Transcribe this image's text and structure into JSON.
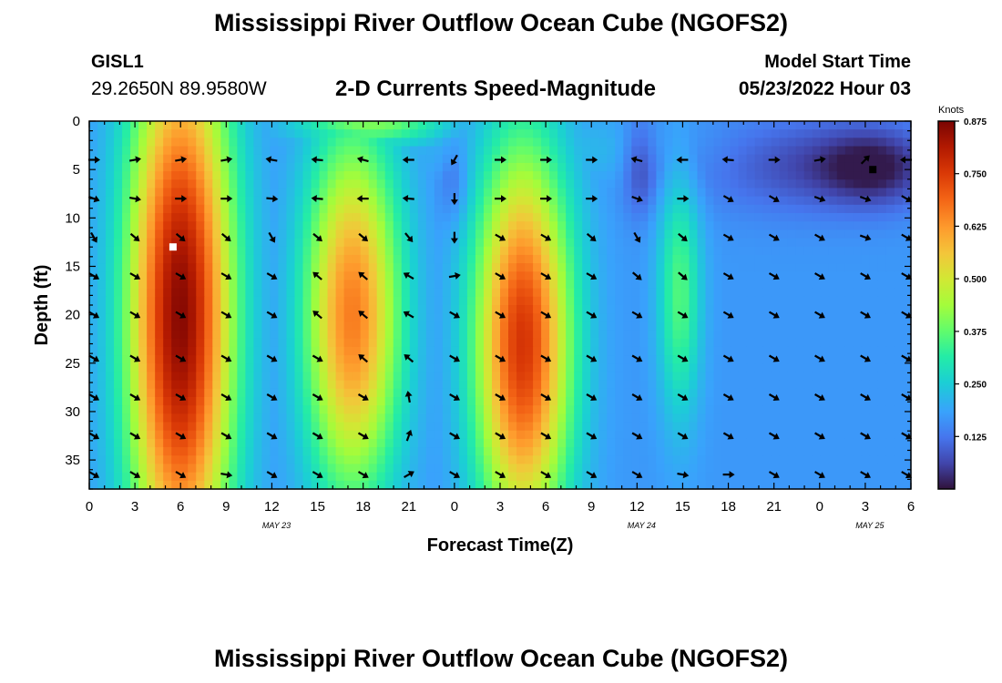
{
  "header": {
    "title": "Mississippi River Outflow Ocean Cube (NGOFS2)",
    "station": "GISL1",
    "coords": "29.2650N  89.9580W",
    "subtitle": "2-D Currents Speed-Magnitude",
    "model_start_label": "Model Start Time",
    "model_start_value": "05/23/2022 Hour 03"
  },
  "footer": {
    "title": "Mississippi River Outflow Ocean Cube (NGOFS2)"
  },
  "chart_data": {
    "type": "heatmap",
    "xlabel": "Forecast Time(Z)",
    "ylabel": "Depth (ft)",
    "xlim": [
      0,
      54
    ],
    "ylim": [
      0,
      38
    ],
    "y_inverted": true,
    "x_tick_values": [
      0,
      3,
      6,
      9,
      12,
      15,
      18,
      21,
      24,
      27,
      30,
      33,
      36,
      39,
      42,
      45,
      48,
      51,
      54
    ],
    "x_tick_labels": [
      "0",
      "3",
      "6",
      "9",
      "12",
      "15",
      "18",
      "21",
      "0",
      "3",
      "6",
      "9",
      "12",
      "15",
      "18",
      "21",
      "0",
      "3",
      "6"
    ],
    "y_tick_values": [
      0,
      5,
      10,
      15,
      20,
      25,
      30,
      35
    ],
    "y_tick_labels": [
      "0",
      "5",
      "10",
      "15",
      "20",
      "25",
      "30",
      "35"
    ],
    "date_labels": [
      {
        "x": 12.3,
        "text": "MAY 23"
      },
      {
        "x": 36.3,
        "text": "MAY 24"
      },
      {
        "x": 51.3,
        "text": "MAY 25"
      }
    ],
    "colorbar": {
      "label": "Knots",
      "min": 0,
      "max": 0.875,
      "tick_values": [
        0.125,
        0.25,
        0.375,
        0.5,
        0.625,
        0.75,
        0.875
      ],
      "tick_labels": [
        "0.125",
        "0.250",
        "0.375",
        "0.500",
        "0.625",
        "0.750",
        "0.875"
      ]
    },
    "speed_features": [
      {
        "t": 6,
        "d": 20,
        "st": 2.4,
        "sd": 20,
        "amp": 0.86
      },
      {
        "t": 6.2,
        "d": 1,
        "st": 1.5,
        "sd": 2.4,
        "amp": 0.5
      },
      {
        "t": 17.3,
        "d": 20,
        "st": 2.2,
        "sd": 13,
        "amp": 0.66
      },
      {
        "t": 15.8,
        "d": 33,
        "st": 1.3,
        "sd": 5,
        "amp": 0.18
      },
      {
        "t": 18.5,
        "d": 0.3,
        "st": 3.5,
        "sd": 1.6,
        "amp": 0.4
      },
      {
        "t": 28.5,
        "d": 23,
        "st": 2.2,
        "sd": 14,
        "amp": 0.76
      },
      {
        "t": 38.8,
        "d": 18,
        "st": 1.0,
        "sd": 9,
        "amp": 0.36
      },
      {
        "t": 38.8,
        "d": 3,
        "st": 0.8,
        "sd": 4,
        "amp": 0.18
      },
      {
        "t": 51,
        "d": 22,
        "st": 2.0,
        "sd": 15,
        "amp": 0.1
      },
      {
        "t": 45.5,
        "d": 22,
        "st": 1.5,
        "sd": 15,
        "amp": 0.06
      },
      {
        "t": 30,
        "d": 3,
        "st": 8,
        "sd": 2.6,
        "amp": 0.22
      },
      {
        "t": 16,
        "d": 4.5,
        "st": 6,
        "sd": 3,
        "amp": 0.12
      }
    ],
    "low_features": [
      {
        "t": 36.2,
        "d": 4.5,
        "st": 0.8,
        "sd": 3.5,
        "amp": 0.1
      },
      {
        "t": 51.7,
        "d": 4.8,
        "st": 2.5,
        "sd": 2.8,
        "amp": 0.12
      },
      {
        "t": 47,
        "d": 4.5,
        "st": 5,
        "sd": 3.5,
        "amp": 0.1
      },
      {
        "t": 24,
        "d": 6.5,
        "st": 0.7,
        "sd": 3,
        "amp": 0.06
      }
    ],
    "vector_times": [
      0,
      3,
      6,
      9,
      12,
      15,
      18,
      21,
      24,
      27,
      30,
      33,
      36,
      39,
      42,
      45,
      48,
      51,
      54
    ],
    "vector_depths": [
      4,
      8,
      12,
      16,
      20,
      24.5,
      28.5,
      32.5,
      36.5
    ],
    "vector_directions": [
      [
        0,
        10,
        10,
        10,
        170,
        175,
        165,
        180,
        240,
        0,
        0,
        0,
        165,
        180,
        175,
        0,
        10,
        45,
        180
      ],
      [
        340,
        350,
        0,
        0,
        355,
        175,
        180,
        175,
        270,
        0,
        0,
        0,
        340,
        0,
        330,
        330,
        340,
        340,
        330
      ],
      [
        300,
        320,
        320,
        320,
        300,
        320,
        320,
        310,
        270,
        330,
        330,
        320,
        300,
        320,
        330,
        330,
        330,
        340,
        330
      ],
      [
        330,
        330,
        330,
        330,
        330,
        140,
        140,
        150,
        10,
        330,
        330,
        330,
        320,
        320,
        330,
        330,
        330,
        330,
        330
      ],
      [
        330,
        330,
        330,
        330,
        330,
        140,
        140,
        150,
        330,
        330,
        330,
        330,
        330,
        330,
        330,
        330,
        330,
        330,
        330
      ],
      [
        330,
        330,
        330,
        330,
        330,
        330,
        140,
        140,
        330,
        330,
        330,
        330,
        330,
        330,
        330,
        330,
        330,
        330,
        330
      ],
      [
        330,
        330,
        330,
        330,
        330,
        330,
        330,
        100,
        330,
        330,
        330,
        330,
        330,
        330,
        330,
        330,
        330,
        330,
        330
      ],
      [
        330,
        330,
        330,
        330,
        330,
        330,
        330,
        70,
        330,
        330,
        330,
        330,
        330,
        330,
        330,
        330,
        330,
        330,
        330
      ],
      [
        330,
        330,
        330,
        350,
        330,
        330,
        330,
        30,
        330,
        330,
        330,
        330,
        330,
        350,
        0,
        330,
        330,
        330,
        330
      ]
    ],
    "markers": [
      {
        "t": 5.5,
        "d": 13,
        "color": "#ffffff"
      },
      {
        "t": 51.5,
        "d": 5,
        "color": "#000000"
      }
    ]
  }
}
